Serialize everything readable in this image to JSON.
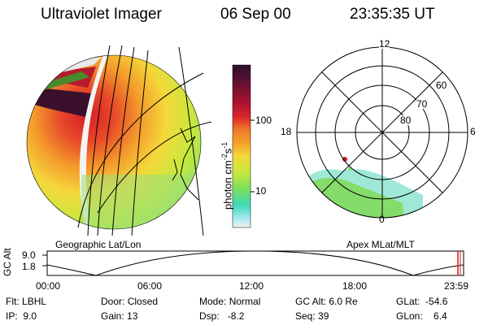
{
  "header": {
    "title": "Ultraviolet Imager",
    "date": "06 Sep 00",
    "time": "23:35:35 UT"
  },
  "left_panel": {
    "label": "Geographic Lat/Lon"
  },
  "right_panel": {
    "label": "Apex MLat/MLT",
    "mlt_labels": {
      "top": "12",
      "left": "18",
      "right": "6",
      "bottom": "0"
    },
    "lat_labels": [
      "60",
      "70",
      "80"
    ]
  },
  "colorbar": {
    "unit_text": "photon cm",
    "unit_exp1": "-2",
    "unit_s": "s",
    "unit_exp2": "-1",
    "ticks": [
      "100",
      "10"
    ],
    "colors": [
      "#2b0f2f",
      "#6a1033",
      "#a0132f",
      "#cf1b2a",
      "#e8502a",
      "#f5a02a",
      "#f4d83a",
      "#c8e83f",
      "#7ee05a",
      "#3fd9b4",
      "#9fe8f0",
      "#f2f2f2"
    ]
  },
  "altitude_plot": {
    "axis_label": "GC Alt",
    "y_ticks": [
      "9.0",
      "1.8"
    ],
    "x_ticks": [
      "00:00",
      "06:00",
      "12:00",
      "18:00",
      "23:59"
    ]
  },
  "info": {
    "flt_label": "Flt:",
    "flt_value": "LBHL",
    "ip_label": "IP:",
    "ip_value": "9.0",
    "door_label": "Door:",
    "door_value": "Closed",
    "gain_label": "Gain:",
    "gain_value": "13",
    "mode_label": "Mode:",
    "mode_value": "Normal",
    "dsp_label": "Dsp:",
    "dsp_value": "-8.2",
    "gcalt_label": "GC Alt:",
    "gcalt_value": "6.0 Re",
    "seq_label": "Seq:",
    "seq_value": "39",
    "glat_label": "GLat:",
    "glat_value": "-54.6",
    "glon_label": "GLon:",
    "glon_value": "6.4"
  }
}
